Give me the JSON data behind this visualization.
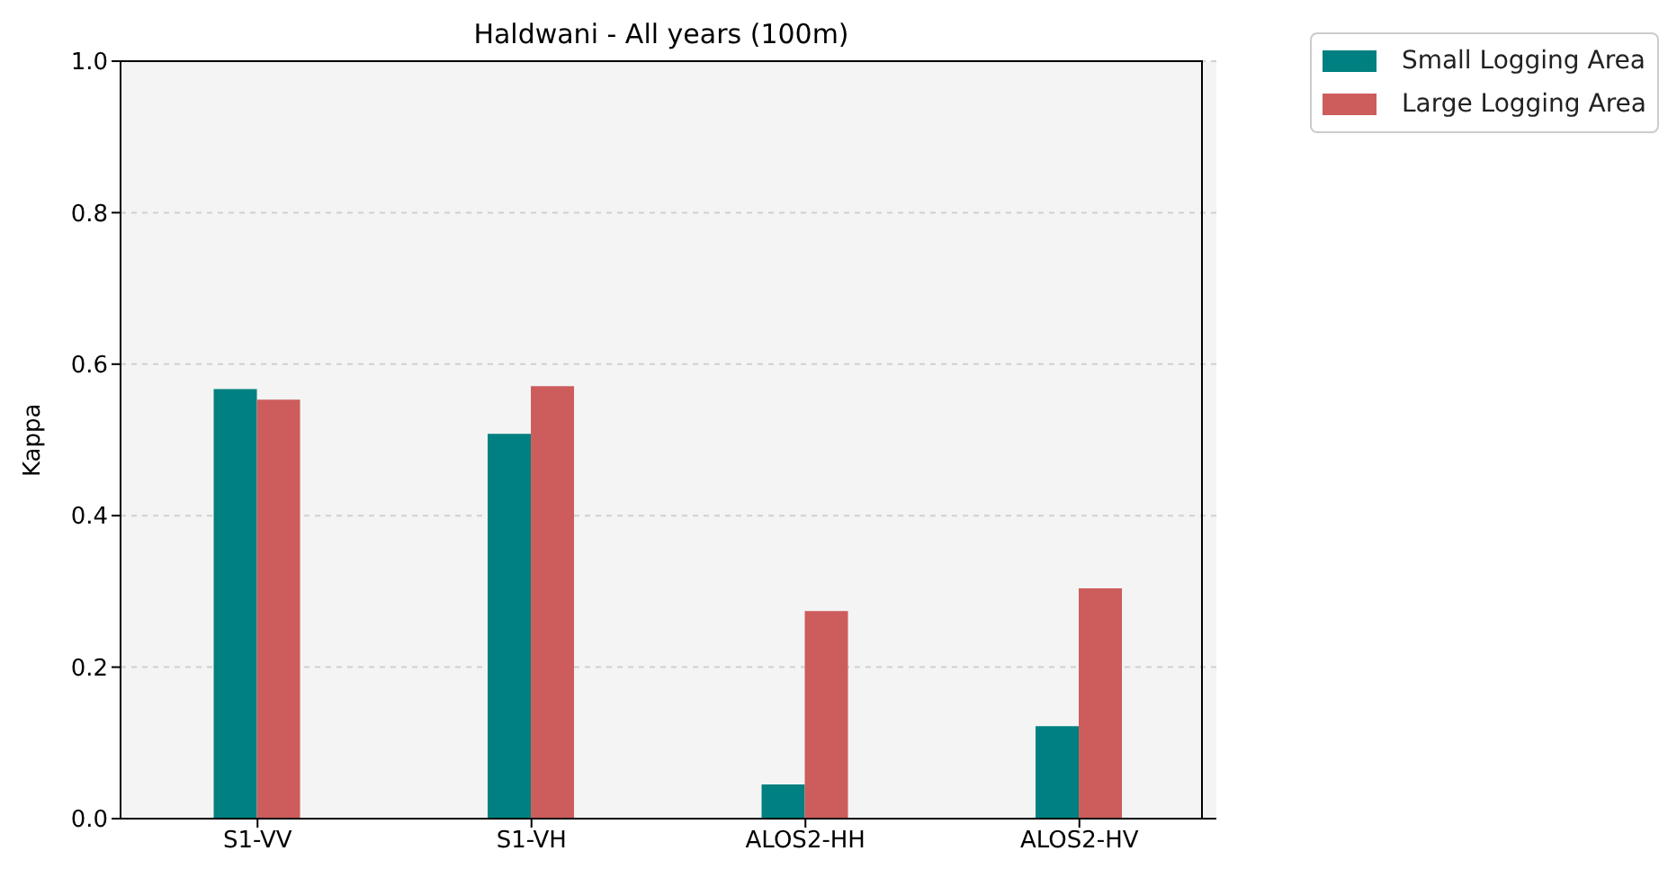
{
  "chart_data": {
    "type": "bar",
    "title": "Haldwani - All years (100m)",
    "ylabel": "Kappa",
    "categories": [
      "S1-VV",
      "S1-VH",
      "ALOS2-HH",
      "ALOS2-HV"
    ],
    "series": [
      {
        "name": "Small Logging Area",
        "color": "#008080",
        "values": [
          0.567,
          0.508,
          0.045,
          0.122
        ]
      },
      {
        "name": "Large Logging Area",
        "color": "#cd5c5c",
        "values": [
          0.553,
          0.571,
          0.274,
          0.304
        ]
      }
    ],
    "ylim": [
      0,
      1
    ],
    "yticks": [
      {
        "value": 0,
        "label": "0.0"
      },
      {
        "value": 0.2,
        "label": "0.2"
      },
      {
        "value": 0.4,
        "label": "0.4"
      },
      {
        "value": 0.6,
        "label": "0.6"
      },
      {
        "value": 0.8,
        "label": "0.8"
      },
      {
        "value": 1,
        "label": "1.0"
      }
    ],
    "grid": "y",
    "legend": "top right"
  }
}
